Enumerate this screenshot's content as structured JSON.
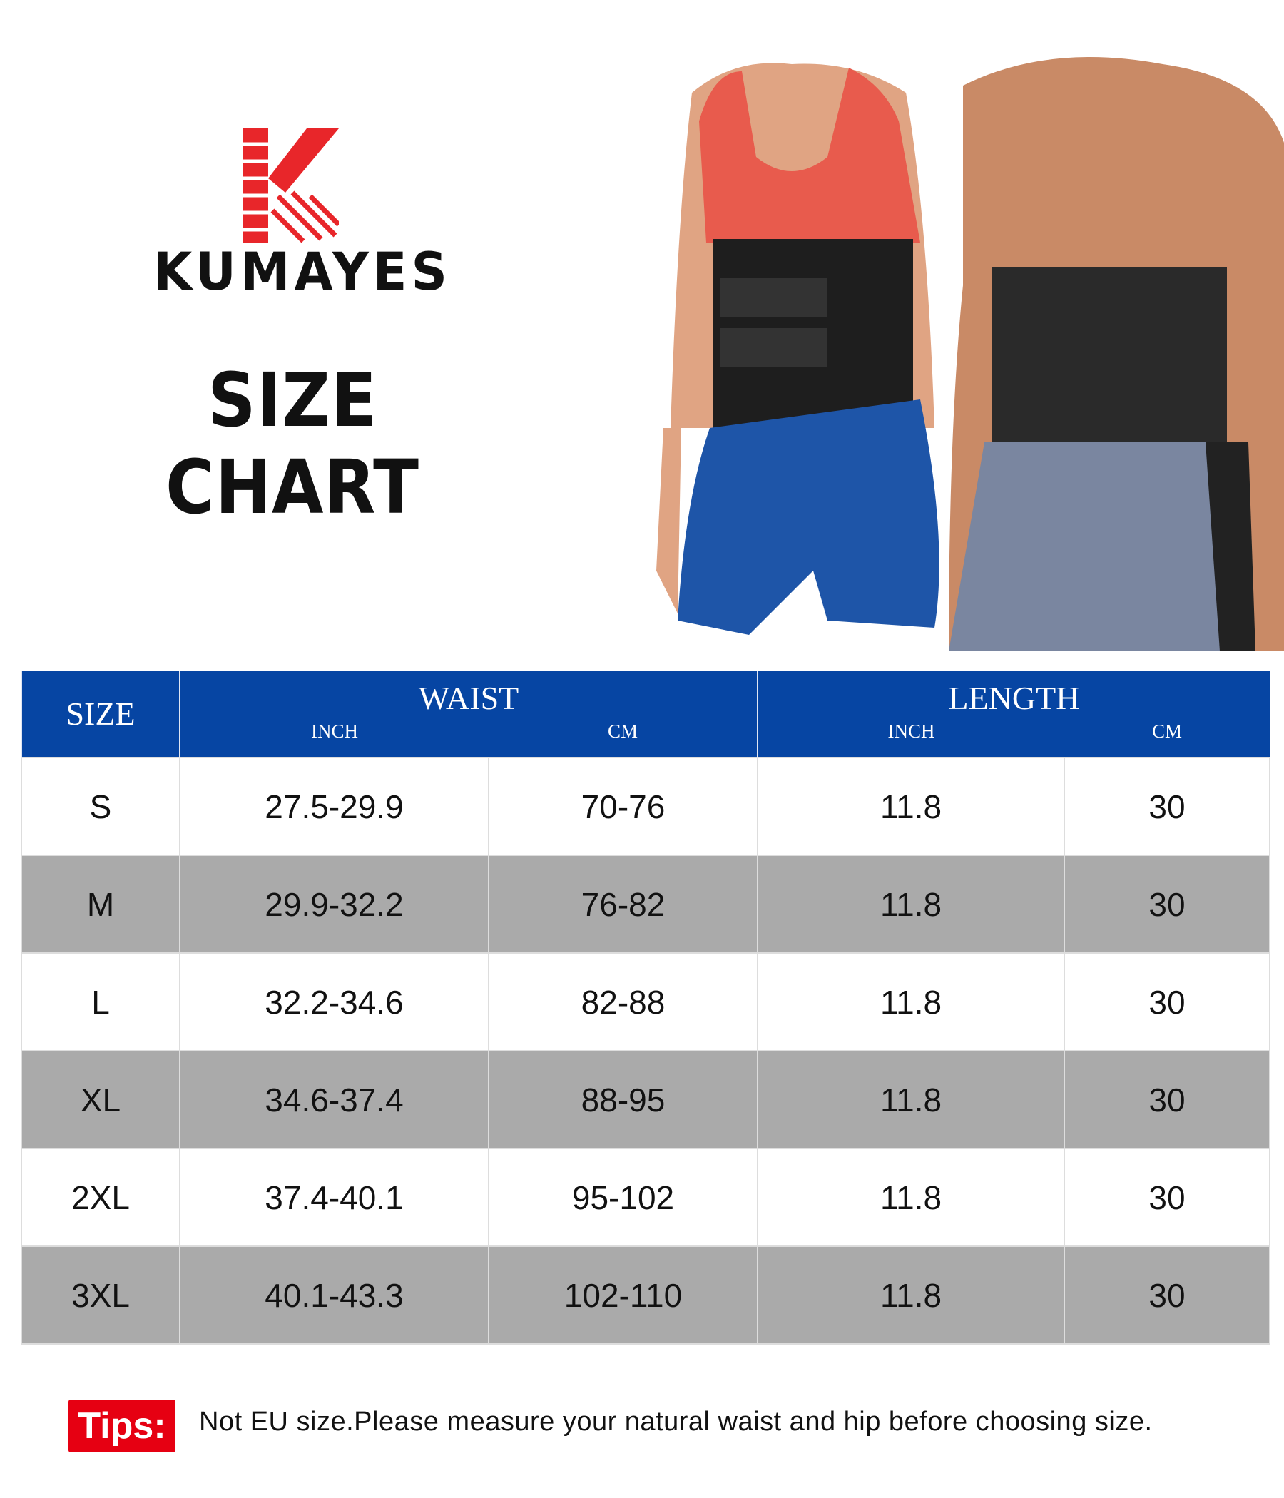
{
  "brand": {
    "name": "KUMAYES",
    "logo_letter": "K",
    "accent": "#e8262a"
  },
  "title": "SIZE CHART",
  "table": {
    "header_color": "#0645a3",
    "size_header": "SIZE",
    "groups": [
      {
        "label": "WAIST",
        "sub": [
          "INCH",
          "CM"
        ]
      },
      {
        "label": "LENGTH",
        "sub": [
          "INCH",
          "CM"
        ]
      }
    ],
    "rows": [
      [
        "S",
        "27.5-29.9",
        "70-76",
        "11.8",
        "30"
      ],
      [
        "M",
        "29.9-32.2",
        "76-82",
        "11.8",
        "30"
      ],
      [
        "L",
        "32.2-34.6",
        "82-88",
        "11.8",
        "30"
      ],
      [
        "XL",
        "34.6-37.4",
        "88-95",
        "11.8",
        "30"
      ],
      [
        "2XL",
        "37.4-40.1",
        "95-102",
        "11.8",
        "30"
      ],
      [
        "3XL",
        "40.1-43.3",
        "102-110",
        "11.8",
        "30"
      ]
    ]
  },
  "tips": {
    "label": "Tips:",
    "text": "Not EU size.Please measure your natural waist and hip before choosing size.",
    "color": "#e60012"
  }
}
